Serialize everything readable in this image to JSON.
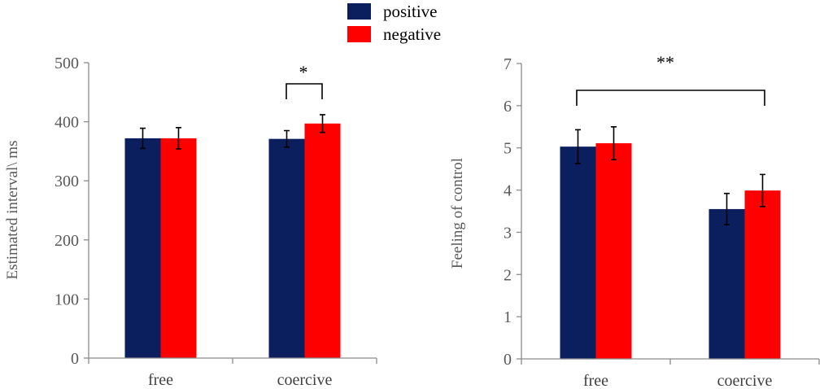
{
  "legend": {
    "items": [
      {
        "label": "positive",
        "color": "#0b1f5e"
      },
      {
        "label": "negative",
        "color": "#ff0000"
      }
    ]
  },
  "chart_data": [
    {
      "type": "bar",
      "categories": [
        "free",
        "coercive"
      ],
      "series": [
        {
          "name": "positive",
          "color": "#0b1f5e",
          "values": [
            372,
            371
          ],
          "errors": [
            17,
            14
          ]
        },
        {
          "name": "negative",
          "color": "#ff0000",
          "values": [
            372,
            397
          ],
          "errors": [
            18,
            15
          ]
        }
      ],
      "ylabel": "Estimated interval\\ ms",
      "xlabel": "",
      "ylim": [
        0,
        500
      ],
      "yticks": [
        0,
        100,
        200,
        300,
        400,
        500
      ],
      "significance": [
        {
          "label": "*",
          "between": "coercive positive vs negative"
        }
      ]
    },
    {
      "type": "bar",
      "categories": [
        "free",
        "coercive"
      ],
      "series": [
        {
          "name": "positive",
          "color": "#0b1f5e",
          "values": [
            5.03,
            3.55
          ],
          "errors": [
            0.4,
            0.37
          ]
        },
        {
          "name": "negative",
          "color": "#ff0000",
          "values": [
            5.11,
            3.99
          ],
          "errors": [
            0.39,
            0.38
          ]
        }
      ],
      "ylabel": "Feeling of control",
      "xlabel": "",
      "ylim": [
        0,
        7
      ],
      "yticks": [
        0,
        1,
        2,
        3,
        4,
        5,
        6,
        7
      ],
      "significance": [
        {
          "label": "**",
          "between": "free vs coercive"
        }
      ]
    }
  ]
}
